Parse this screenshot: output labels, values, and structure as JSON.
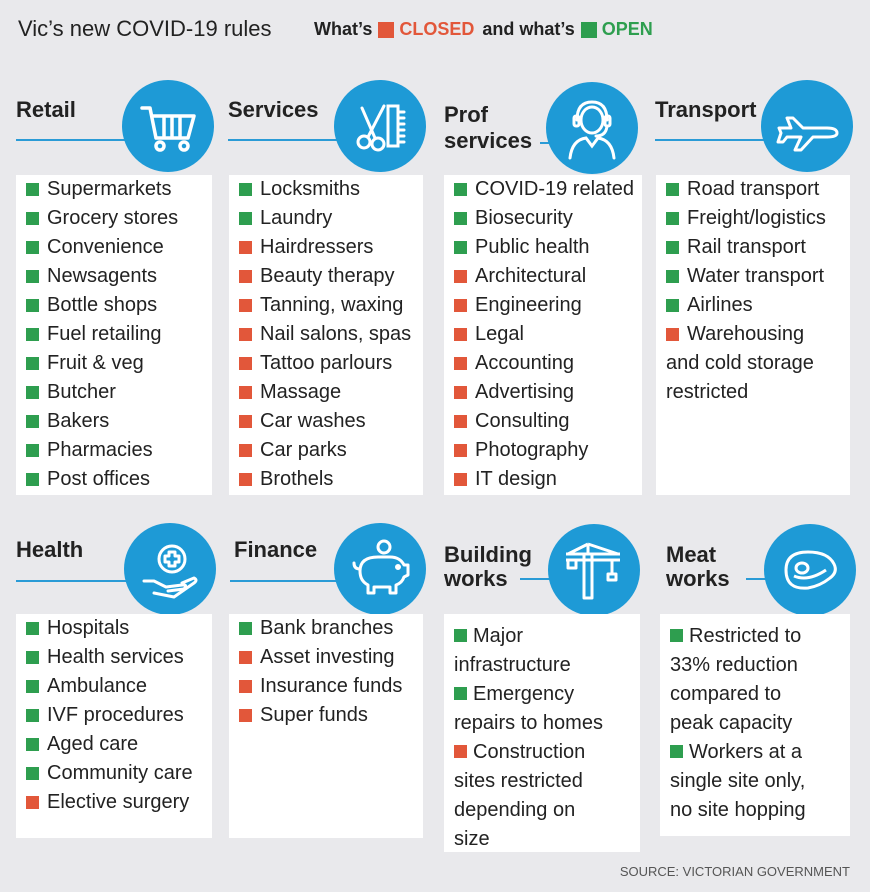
{
  "header": {
    "title": "Vic’s new COVID-19 rules",
    "legend_whats_1": "What’s",
    "legend_closed": "CLOSED",
    "legend_and": "and what’s",
    "legend_open": "OPEN"
  },
  "colors": {
    "closed": "#e2573a",
    "open": "#2e9e4f",
    "accent": "#1e9ad6"
  },
  "categories": [
    {
      "name": "Retail",
      "icon": "shopping-cart-icon",
      "items": [
        {
          "label": "Supermarkets",
          "status": "open"
        },
        {
          "label": "Grocery stores",
          "status": "open"
        },
        {
          "label": "Convenience",
          "status": "open"
        },
        {
          "label": "Newsagents",
          "status": "open"
        },
        {
          "label": "Bottle shops",
          "status": "open"
        },
        {
          "label": "Fuel retailing",
          "status": "open"
        },
        {
          "label": "Fruit & veg",
          "status": "open"
        },
        {
          "label": "Butcher",
          "status": "open"
        },
        {
          "label": "Bakers",
          "status": "open"
        },
        {
          "label": "Pharmacies",
          "status": "open"
        },
        {
          "label": "Post offices",
          "status": "open"
        }
      ]
    },
    {
      "name": "Services",
      "icon": "scissors-comb-icon",
      "items": [
        {
          "label": "Locksmiths",
          "status": "open"
        },
        {
          "label": "Laundry",
          "status": "open"
        },
        {
          "label": "Hairdressers",
          "status": "closed"
        },
        {
          "label": "Beauty therapy",
          "status": "closed"
        },
        {
          "label": "Tanning, waxing",
          "status": "closed"
        },
        {
          "label": "Nail salons, spas",
          "status": "closed"
        },
        {
          "label": "Tattoo parlours",
          "status": "closed"
        },
        {
          "label": "Massage",
          "status": "closed"
        },
        {
          "label": "Car washes",
          "status": "closed"
        },
        {
          "label": "Car parks",
          "status": "closed"
        },
        {
          "label": "Brothels",
          "status": "closed"
        }
      ]
    },
    {
      "name_line1": "Prof",
      "name_line2": "services",
      "icon": "headset-person-icon",
      "items": [
        {
          "label": "COVID-19 related",
          "status": "open"
        },
        {
          "label": "Biosecurity",
          "status": "open"
        },
        {
          "label": "Public health",
          "status": "open"
        },
        {
          "label": "Architectural",
          "status": "closed"
        },
        {
          "label": "Engineering",
          "status": "closed"
        },
        {
          "label": "Legal",
          "status": "closed"
        },
        {
          "label": "Accounting",
          "status": "closed"
        },
        {
          "label": "Advertising",
          "status": "closed"
        },
        {
          "label": "Consulting",
          "status": "closed"
        },
        {
          "label": "Photography",
          "status": "closed"
        },
        {
          "label": "IT design",
          "status": "closed"
        }
      ]
    },
    {
      "name": "Transport",
      "icon": "airplane-icon",
      "items": [
        {
          "label": "Road transport",
          "status": "open"
        },
        {
          "label": "Freight/logistics",
          "status": "open"
        },
        {
          "label": "Rail transport",
          "status": "open"
        },
        {
          "label": "Water transport",
          "status": "open"
        },
        {
          "label": "Airlines",
          "status": "open"
        },
        {
          "label": "Warehousing",
          "status": "closed"
        }
      ],
      "extra_lines": [
        "and cold storage",
        "restricted"
      ]
    },
    {
      "name": "Health",
      "icon": "medical-hand-icon",
      "items": [
        {
          "label": "Hospitals",
          "status": "open"
        },
        {
          "label": "Health services",
          "status": "open"
        },
        {
          "label": "Ambulance",
          "status": "open"
        },
        {
          "label": "IVF procedures",
          "status": "open"
        },
        {
          "label": "Aged care",
          "status": "open"
        },
        {
          "label": "Community care",
          "status": "open"
        },
        {
          "label": "Elective surgery",
          "status": "closed"
        }
      ]
    },
    {
      "name": "Finance",
      "icon": "piggy-bank-icon",
      "items": [
        {
          "label": "Bank branches",
          "status": "open"
        },
        {
          "label": "Asset investing",
          "status": "closed"
        },
        {
          "label": "Insurance funds",
          "status": "closed"
        },
        {
          "label": "Super funds",
          "status": "closed"
        }
      ]
    },
    {
      "name_line1": "Building",
      "name_line2": "works",
      "icon": "crane-icon",
      "paragraphs": [
        {
          "status": "open",
          "lines": [
            "Major",
            "infrastructure"
          ]
        },
        {
          "status": "open",
          "lines": [
            "Emergency",
            "repairs to homes"
          ]
        },
        {
          "status": "closed",
          "lines": [
            "Construction",
            "sites restricted",
            "depending on",
            "size"
          ]
        }
      ]
    },
    {
      "name_line1": "Meat",
      "name_line2": "works",
      "icon": "steak-icon",
      "paragraphs": [
        {
          "status": "open",
          "lines": [
            "Restricted to",
            "33% reduction",
            "compared to",
            "peak capacity"
          ]
        },
        {
          "status": "open",
          "lines": [
            "Workers at a",
            "single site only,",
            "no site hopping"
          ]
        }
      ]
    }
  ],
  "source": "SOURCE: VICTORIAN GOVERNMENT"
}
